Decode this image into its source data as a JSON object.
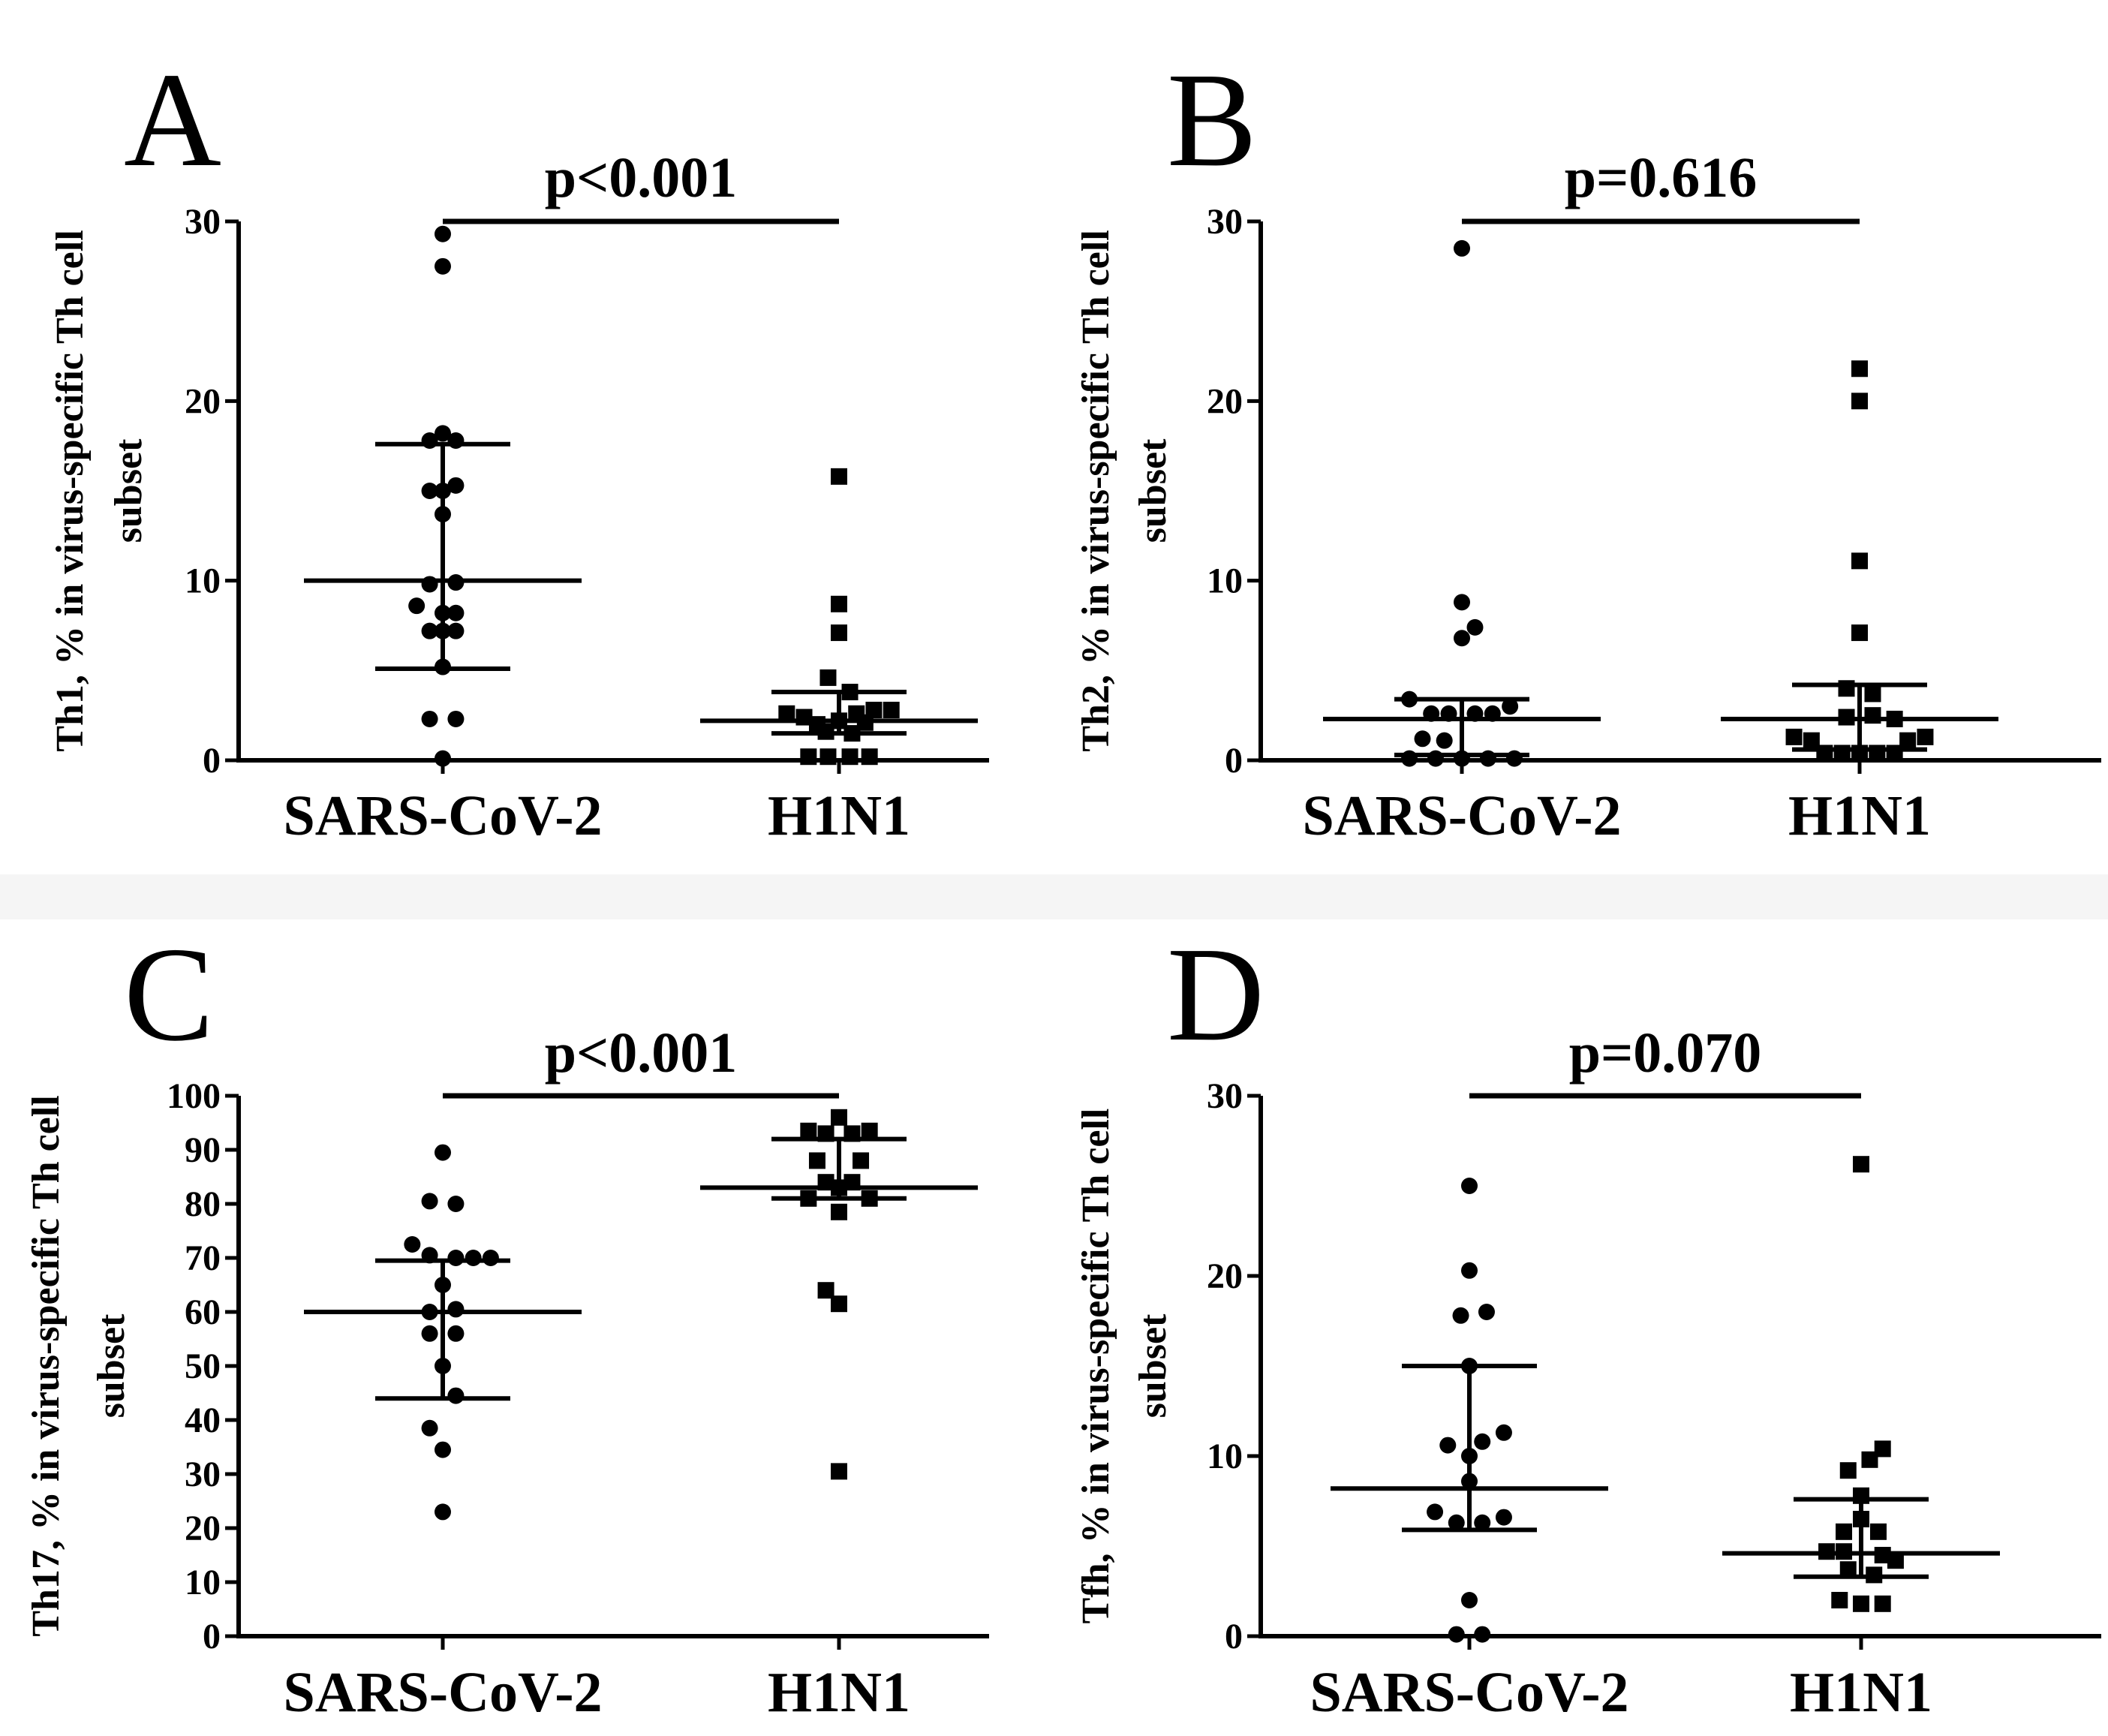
{
  "figure": {
    "panels": [
      "A",
      "B",
      "C",
      "D"
    ]
  },
  "chart_data": [
    {
      "panel": "A",
      "type": "scatter",
      "p_value": "p<0.001",
      "ylabel_line1": "Th1, % in virus-specific Th cell",
      "ylabel_line2": "subset",
      "categories": [
        "SARS-CoV-2",
        "H1N1"
      ],
      "ylim": [
        0,
        30
      ],
      "yticks": [
        0,
        10,
        20,
        30
      ],
      "series": [
        {
          "marker": "circle",
          "points": [
            {
              "dx": 0.0,
              "y": 29.3
            },
            {
              "dx": 0.0,
              "y": 27.5
            },
            {
              "dx": 0.0,
              "y": 18.2
            },
            {
              "dx": 0.06,
              "y": 17.8
            },
            {
              "dx": -0.06,
              "y": 17.8
            },
            {
              "dx": 0.0,
              "y": 15.0
            },
            {
              "dx": 0.06,
              "y": 15.3
            },
            {
              "dx": -0.06,
              "y": 15.0
            },
            {
              "dx": 0.0,
              "y": 13.7
            },
            {
              "dx": -0.12,
              "y": 8.6
            },
            {
              "dx": 0.06,
              "y": 9.9
            },
            {
              "dx": -0.06,
              "y": 9.8
            },
            {
              "dx": 0.0,
              "y": 8.2
            },
            {
              "dx": 0.06,
              "y": 8.2
            },
            {
              "dx": -0.06,
              "y": 7.2
            },
            {
              "dx": 0.0,
              "y": 7.2
            },
            {
              "dx": 0.06,
              "y": 7.2
            },
            {
              "dx": 0.0,
              "y": 5.2
            },
            {
              "dx": -0.06,
              "y": 2.3
            },
            {
              "dx": 0.06,
              "y": 2.3
            },
            {
              "dx": 0.0,
              "y": 0.1
            }
          ],
          "median": 10.0,
          "q1": 5.1,
          "q3": 17.6
        },
        {
          "marker": "square",
          "points": [
            {
              "dx": 0.0,
              "y": 15.8
            },
            {
              "dx": 0.0,
              "y": 8.7
            },
            {
              "dx": 0.0,
              "y": 7.1
            },
            {
              "dx": -0.05,
              "y": 4.6
            },
            {
              "dx": 0.05,
              "y": 3.8
            },
            {
              "dx": 0.16,
              "y": 2.8
            },
            {
              "dx": 0.24,
              "y": 2.8
            },
            {
              "dx": -0.24,
              "y": 2.6
            },
            {
              "dx": -0.16,
              "y": 2.4
            },
            {
              "dx": 0.08,
              "y": 2.6
            },
            {
              "dx": -0.1,
              "y": 2.0
            },
            {
              "dx": 0.0,
              "y": 2.2
            },
            {
              "dx": 0.12,
              "y": 2.1
            },
            {
              "dx": -0.06,
              "y": 1.6
            },
            {
              "dx": 0.06,
              "y": 1.5
            },
            {
              "dx": -0.14,
              "y": 0.2
            },
            {
              "dx": -0.05,
              "y": 0.2
            },
            {
              "dx": 0.05,
              "y": 0.2
            },
            {
              "dx": 0.14,
              "y": 0.2
            }
          ],
          "median": 2.2,
          "q1": 1.5,
          "q3": 3.8
        }
      ]
    },
    {
      "panel": "B",
      "type": "scatter",
      "p_value": "p=0.616",
      "ylabel_line1": "Th2, % in virus-specific Th cell",
      "ylabel_line2": "subset",
      "categories": [
        "SARS-CoV-2",
        "H1N1"
      ],
      "ylim": [
        0,
        30
      ],
      "yticks": [
        0,
        10,
        20,
        30
      ],
      "series": [
        {
          "marker": "circle",
          "points": [
            {
              "dx": 0.0,
              "y": 28.5
            },
            {
              "dx": 0.0,
              "y": 8.8
            },
            {
              "dx": 0.06,
              "y": 7.4
            },
            {
              "dx": 0.0,
              "y": 6.8
            },
            {
              "dx": -0.24,
              "y": 3.4
            },
            {
              "dx": 0.22,
              "y": 3.0
            },
            {
              "dx": 0.14,
              "y": 2.6
            },
            {
              "dx": -0.14,
              "y": 2.6
            },
            {
              "dx": -0.06,
              "y": 2.6
            },
            {
              "dx": 0.06,
              "y": 2.6
            },
            {
              "dx": -0.18,
              "y": 1.2
            },
            {
              "dx": -0.08,
              "y": 1.1
            },
            {
              "dx": -0.24,
              "y": 0.1
            },
            {
              "dx": -0.12,
              "y": 0.1
            },
            {
              "dx": 0.0,
              "y": 0.1
            },
            {
              "dx": 0.12,
              "y": 0.1
            },
            {
              "dx": 0.24,
              "y": 0.1
            }
          ],
          "median": 2.3,
          "q1": 0.3,
          "q3": 3.4
        },
        {
          "marker": "square",
          "points": [
            {
              "dx": 0.0,
              "y": 21.8
            },
            {
              "dx": 0.0,
              "y": 20.0
            },
            {
              "dx": 0.0,
              "y": 11.1
            },
            {
              "dx": 0.0,
              "y": 7.1
            },
            {
              "dx": -0.06,
              "y": 4.0
            },
            {
              "dx": 0.06,
              "y": 3.7
            },
            {
              "dx": -0.06,
              "y": 2.4
            },
            {
              "dx": 0.06,
              "y": 2.5
            },
            {
              "dx": 0.16,
              "y": 2.3
            },
            {
              "dx": -0.3,
              "y": 1.3
            },
            {
              "dx": -0.22,
              "y": 1.1
            },
            {
              "dx": 0.22,
              "y": 1.1
            },
            {
              "dx": 0.3,
              "y": 1.3
            },
            {
              "dx": -0.16,
              "y": 0.4
            },
            {
              "dx": -0.08,
              "y": 0.4
            },
            {
              "dx": 0.0,
              "y": 0.4
            },
            {
              "dx": 0.08,
              "y": 0.4
            },
            {
              "dx": 0.16,
              "y": 0.4
            }
          ],
          "median": 2.3,
          "q1": 0.6,
          "q3": 4.2
        }
      ]
    },
    {
      "panel": "C",
      "type": "scatter",
      "p_value": "p<0.001",
      "ylabel_line1": "Th17, % in virus-specific Th cell",
      "ylabel_line2": "subset",
      "categories": [
        "SARS-CoV-2",
        "H1N1"
      ],
      "ylim": [
        0,
        100
      ],
      "yticks": [
        0,
        10,
        20,
        30,
        40,
        50,
        60,
        70,
        80,
        90,
        100
      ],
      "series": [
        {
          "marker": "circle",
          "points": [
            {
              "dx": 0.0,
              "y": 89.5
            },
            {
              "dx": -0.06,
              "y": 80.5
            },
            {
              "dx": 0.06,
              "y": 80.0
            },
            {
              "dx": -0.14,
              "y": 72.5
            },
            {
              "dx": -0.06,
              "y": 70.5
            },
            {
              "dx": 0.06,
              "y": 70.0
            },
            {
              "dx": 0.14,
              "y": 70.0
            },
            {
              "dx": 0.22,
              "y": 70.0
            },
            {
              "dx": 0.0,
              "y": 65.0
            },
            {
              "dx": -0.06,
              "y": 60.0
            },
            {
              "dx": 0.06,
              "y": 60.5
            },
            {
              "dx": -0.06,
              "y": 56.0
            },
            {
              "dx": 0.06,
              "y": 56.0
            },
            {
              "dx": 0.0,
              "y": 50.0
            },
            {
              "dx": 0.06,
              "y": 44.5
            },
            {
              "dx": -0.06,
              "y": 38.5
            },
            {
              "dx": 0.0,
              "y": 34.5
            },
            {
              "dx": 0.0,
              "y": 23.0
            }
          ],
          "median": 60.0,
          "q1": 44.0,
          "q3": 69.5
        },
        {
          "marker": "square",
          "points": [
            {
              "dx": 0.0,
              "y": 96.0
            },
            {
              "dx": -0.14,
              "y": 93.5
            },
            {
              "dx": -0.06,
              "y": 93.0
            },
            {
              "dx": 0.06,
              "y": 93.0
            },
            {
              "dx": 0.14,
              "y": 93.5
            },
            {
              "dx": -0.1,
              "y": 88.0
            },
            {
              "dx": 0.1,
              "y": 88.0
            },
            {
              "dx": -0.06,
              "y": 84.0
            },
            {
              "dx": 0.06,
              "y": 84.0
            },
            {
              "dx": 0.0,
              "y": 83.0
            },
            {
              "dx": -0.14,
              "y": 81.0
            },
            {
              "dx": 0.14,
              "y": 81.0
            },
            {
              "dx": 0.0,
              "y": 78.5
            },
            {
              "dx": -0.06,
              "y": 64.0
            },
            {
              "dx": 0.0,
              "y": 61.5
            },
            {
              "dx": 0.0,
              "y": 30.5
            }
          ],
          "median": 83.0,
          "q1": 81.0,
          "q3": 92.0
        }
      ]
    },
    {
      "panel": "D",
      "type": "scatter",
      "p_value": "p=0.070",
      "ylabel_line1": "Tfh, % in virus-specific Th cell",
      "ylabel_line2": "subset",
      "categories": [
        "SARS-CoV-2",
        "H1N1"
      ],
      "ylim": [
        0,
        30
      ],
      "yticks": [
        0,
        10,
        20,
        30
      ],
      "series": [
        {
          "marker": "circle",
          "points": [
            {
              "dx": 0.0,
              "y": 25.0
            },
            {
              "dx": 0.0,
              "y": 20.3
            },
            {
              "dx": -0.04,
              "y": 17.8
            },
            {
              "dx": 0.08,
              "y": 18.0
            },
            {
              "dx": 0.0,
              "y": 15.0
            },
            {
              "dx": 0.16,
              "y": 11.3
            },
            {
              "dx": 0.06,
              "y": 10.8
            },
            {
              "dx": -0.1,
              "y": 10.6
            },
            {
              "dx": 0.0,
              "y": 10.0
            },
            {
              "dx": 0.0,
              "y": 8.6
            },
            {
              "dx": -0.16,
              "y": 6.9
            },
            {
              "dx": 0.16,
              "y": 6.6
            },
            {
              "dx": 0.06,
              "y": 6.3
            },
            {
              "dx": -0.06,
              "y": 6.3
            },
            {
              "dx": 0.0,
              "y": 2.0
            },
            {
              "dx": -0.06,
              "y": 0.1
            },
            {
              "dx": 0.06,
              "y": 0.1
            }
          ],
          "median": 8.2,
          "q1": 5.9,
          "q3": 15.0
        },
        {
          "marker": "square",
          "points": [
            {
              "dx": 0.0,
              "y": 26.2
            },
            {
              "dx": 0.1,
              "y": 10.4
            },
            {
              "dx": 0.04,
              "y": 9.8
            },
            {
              "dx": -0.06,
              "y": 9.2
            },
            {
              "dx": 0.0,
              "y": 7.8
            },
            {
              "dx": 0.0,
              "y": 6.5
            },
            {
              "dx": -0.08,
              "y": 5.8
            },
            {
              "dx": 0.08,
              "y": 5.8
            },
            {
              "dx": -0.16,
              "y": 4.7
            },
            {
              "dx": -0.08,
              "y": 4.7
            },
            {
              "dx": 0.1,
              "y": 4.5
            },
            {
              "dx": 0.16,
              "y": 4.2
            },
            {
              "dx": -0.06,
              "y": 3.7
            },
            {
              "dx": 0.06,
              "y": 3.4
            },
            {
              "dx": -0.1,
              "y": 2.0
            },
            {
              "dx": 0.0,
              "y": 1.8
            },
            {
              "dx": 0.1,
              "y": 1.8
            }
          ],
          "median": 4.6,
          "q1": 3.3,
          "q3": 7.6
        }
      ]
    }
  ]
}
